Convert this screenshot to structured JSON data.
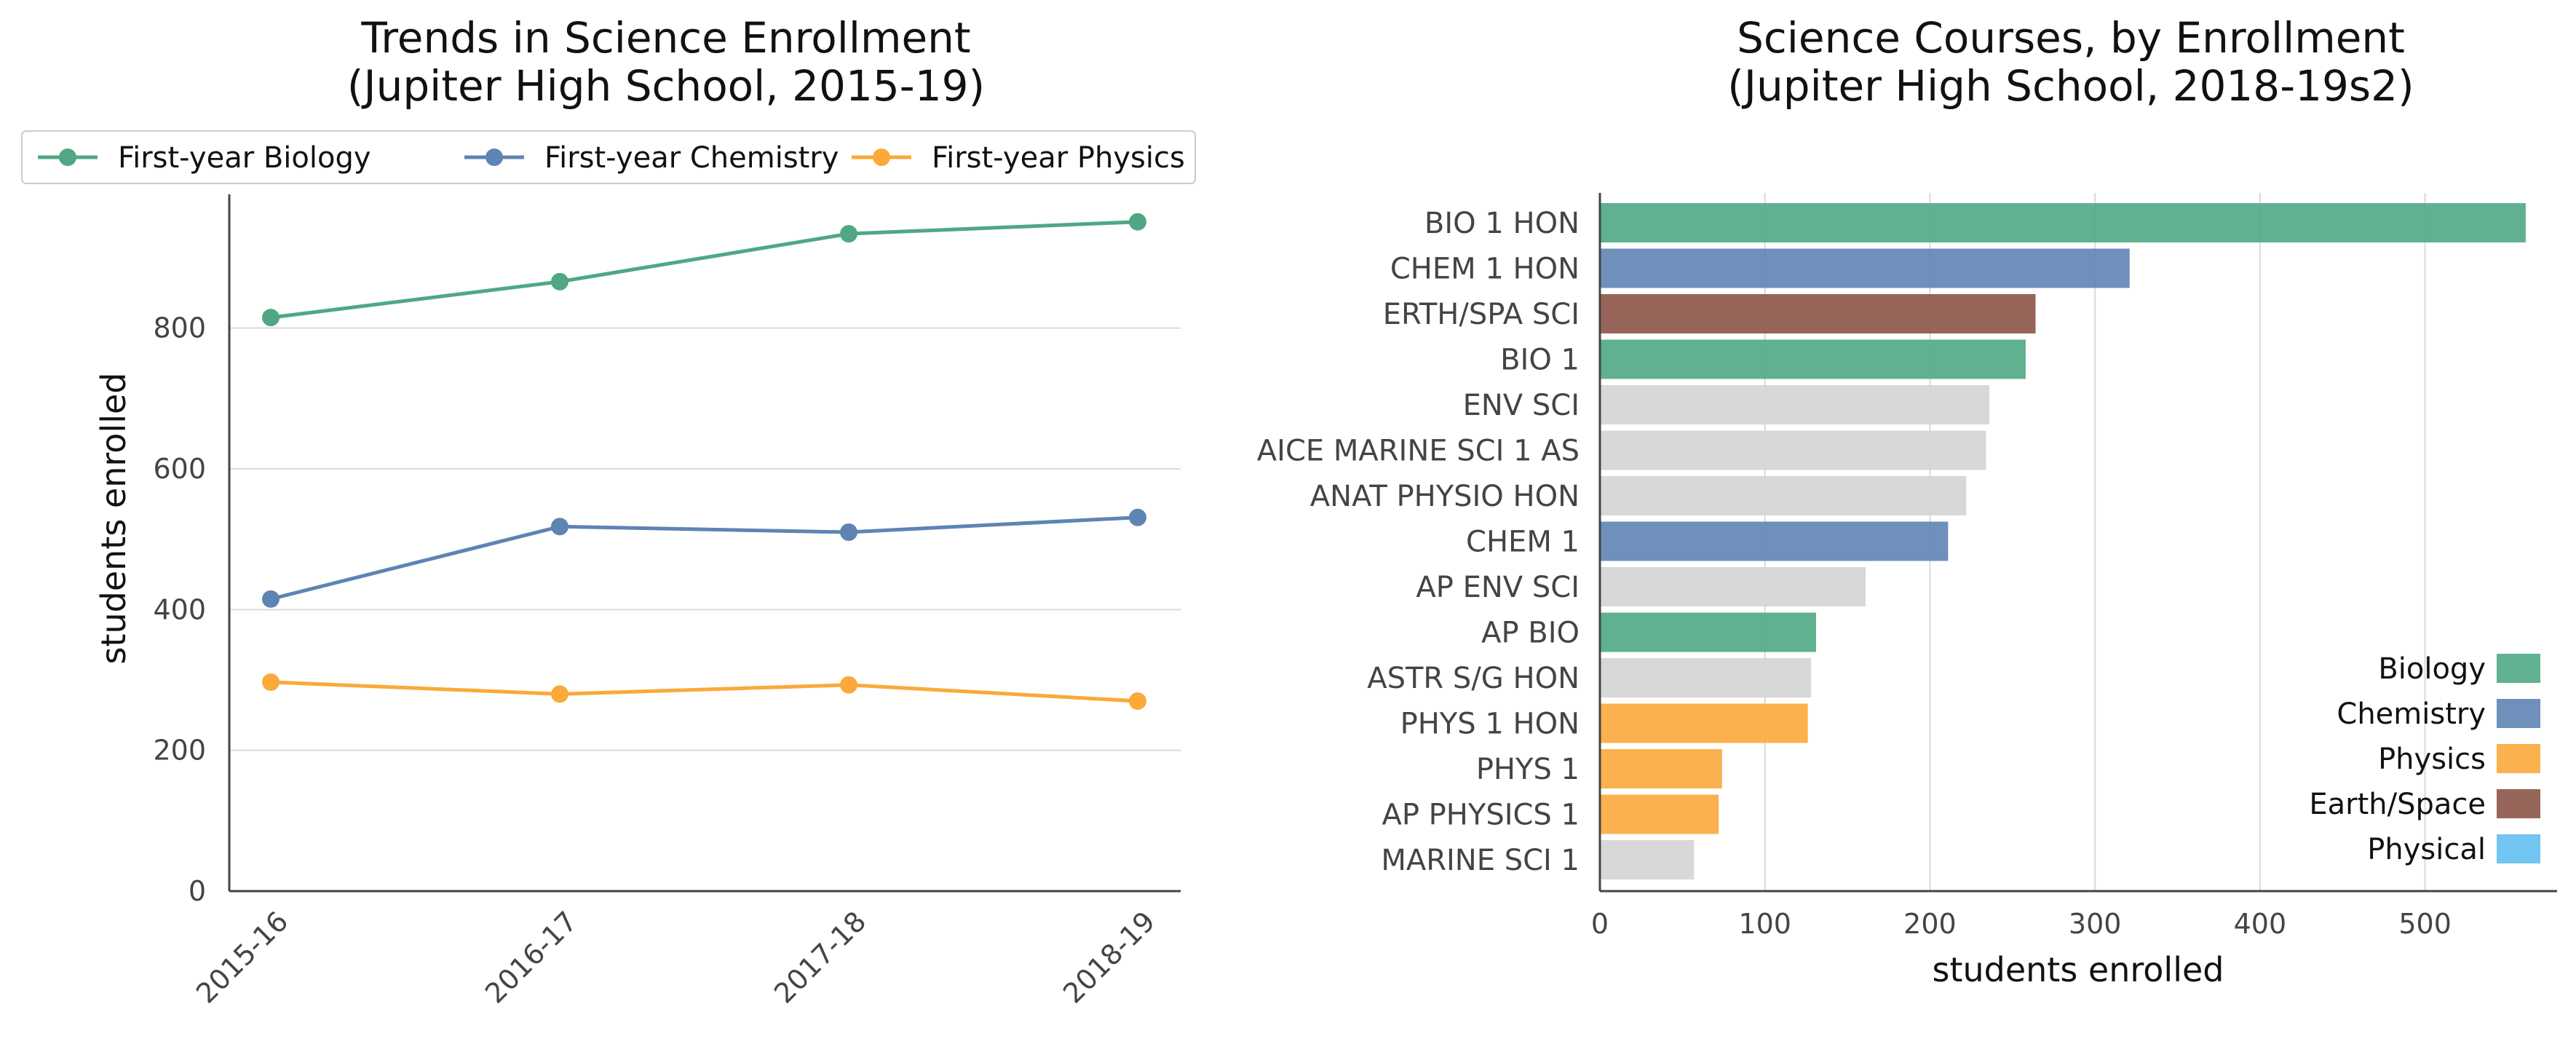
{
  "colors": {
    "biology": "#4fa883",
    "chemistry": "#5e84b4",
    "physics": "#fba93a",
    "earth_space": "#8c5447",
    "physical": "#63bfee",
    "other": "#d4d4d4",
    "grid": "#d9d9d9",
    "axis": "#444444"
  },
  "chart_data": [
    {
      "type": "line",
      "title": "Trends in Science Enrollment",
      "subtitle": "(Jupiter High School, 2015-19)",
      "xlabel": "",
      "ylabel": "students enrolled",
      "categories": [
        "2015-16",
        "2016-17",
        "2017-18",
        "2018-19"
      ],
      "series": [
        {
          "name": "First-year Biology",
          "values": [
            815,
            866,
            934,
            951
          ],
          "color": "#4fa883"
        },
        {
          "name": "First-year Chemistry",
          "values": [
            415,
            518,
            510,
            531
          ],
          "color": "#5e84b4"
        },
        {
          "name": "First-year Physics",
          "values": [
            297,
            280,
            293,
            270
          ],
          "color": "#fba93a"
        }
      ],
      "ylim": [
        0,
        990
      ],
      "yticks": [
        0,
        200,
        400,
        600,
        800
      ],
      "grid": "horizontal",
      "legend": "top"
    },
    {
      "type": "bar",
      "orientation": "horizontal",
      "title": "Science Courses, by Enrollment",
      "subtitle": "(Jupiter High School, 2018-19s2)",
      "xlabel": "students enrolled",
      "ylabel": "",
      "categories": [
        "BIO 1 HON",
        "CHEM 1 HON",
        "ERTH/SPA SCI",
        "BIO 1",
        "ENV SCI",
        "AICE MARINE SCI 1 AS",
        "ANAT PHYSIO HON",
        "CHEM 1",
        "AP ENV SCI",
        "AP BIO",
        "ASTR S/G HON",
        "PHYS 1 HON",
        "PHYS 1",
        "AP PHYSICS 1",
        "MARINE SCI 1"
      ],
      "values": [
        561,
        321,
        264,
        258,
        236,
        234,
        222,
        211,
        161,
        131,
        128,
        126,
        74,
        72,
        57
      ],
      "groups": [
        "biology",
        "chemistry",
        "earth_space",
        "biology",
        "other",
        "other",
        "other",
        "chemistry",
        "other",
        "biology",
        "other",
        "physics",
        "physics",
        "physics",
        "other"
      ],
      "xlim": [
        0,
        580
      ],
      "xticks": [
        0,
        100,
        200,
        300,
        400,
        500
      ],
      "grid": "vertical",
      "legend": [
        {
          "label": "Biology",
          "group": "biology"
        },
        {
          "label": "Chemistry",
          "group": "chemistry"
        },
        {
          "label": "Physics",
          "group": "physics"
        },
        {
          "label": "Earth/Space",
          "group": "earth_space"
        },
        {
          "label": "Physical",
          "group": "physical"
        }
      ],
      "legend_position": "lower-right"
    }
  ]
}
